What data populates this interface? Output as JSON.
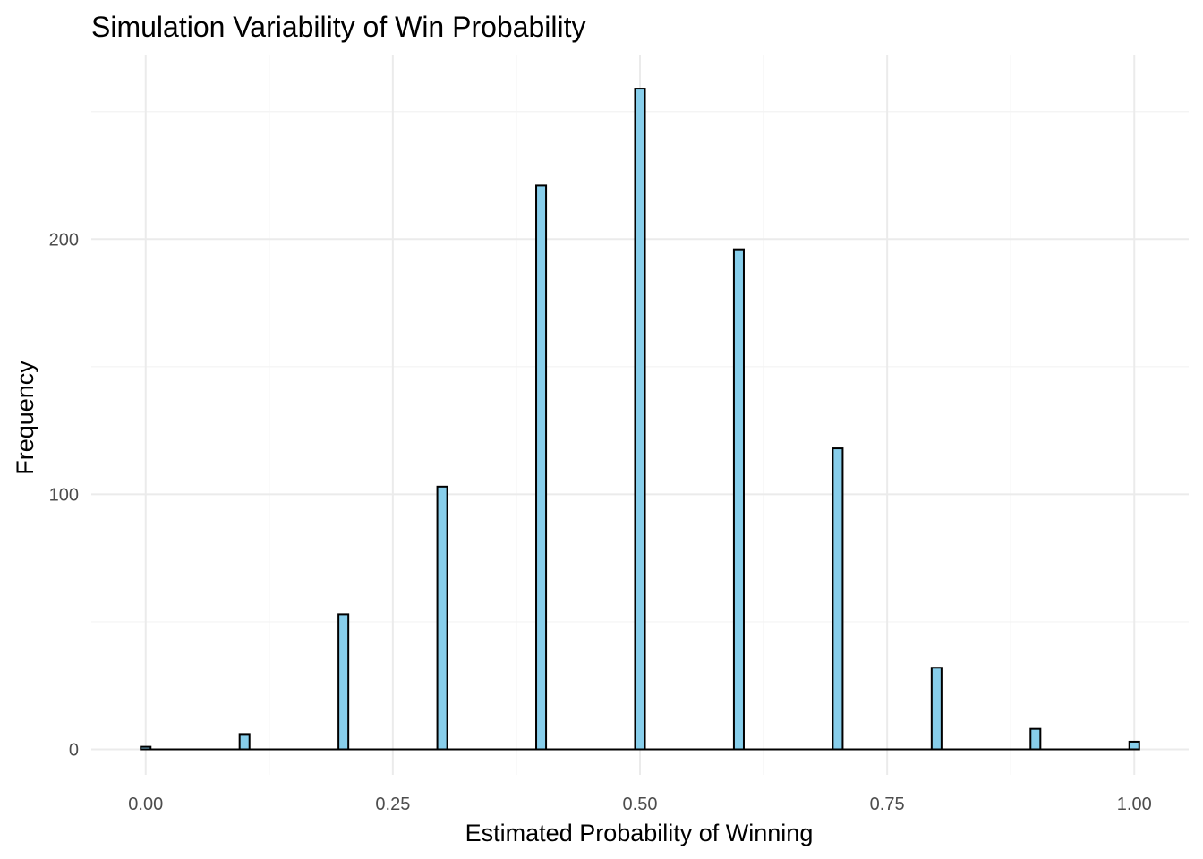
{
  "chart_data": {
    "type": "bar",
    "title": "Simulation Variability of Win Probability",
    "xlabel": "Estimated Probability of Winning",
    "ylabel": "Frequency",
    "x": [
      0.0,
      0.1,
      0.2,
      0.3,
      0.4,
      0.5,
      0.6,
      0.7,
      0.8,
      0.9,
      1.0
    ],
    "values": [
      1,
      6,
      53,
      103,
      221,
      259,
      196,
      118,
      32,
      8,
      3
    ],
    "bin_width": 0.01,
    "xlim": [
      -0.055,
      1.055
    ],
    "ylim": [
      -10,
      272
    ],
    "x_ticks": [
      0.0,
      0.25,
      0.5,
      0.75,
      1.0
    ],
    "x_tick_labels": [
      "0.00",
      "0.25",
      "0.50",
      "0.75",
      "1.00"
    ],
    "y_ticks": [
      0,
      100,
      200
    ],
    "y_tick_labels": [
      "0",
      "100",
      "200"
    ],
    "grid": true,
    "legend": "none",
    "bar_fill": "#87ceeb",
    "bar_outline": "#000000"
  }
}
